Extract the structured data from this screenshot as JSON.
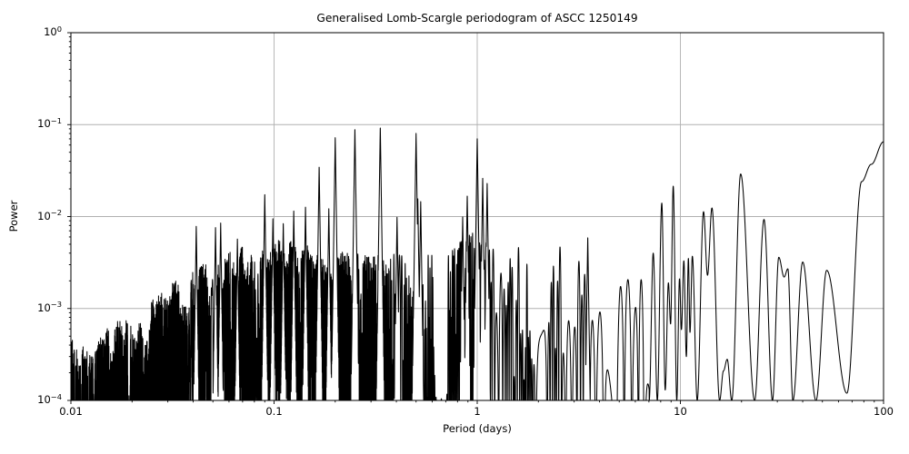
{
  "colors": {
    "line": "#000000",
    "grid": "#b0b0b0",
    "background": "#ffffff",
    "text": "#000000"
  },
  "chart_data": {
    "type": "line",
    "title": "Generalised Lomb-Scargle periodogram of ASCC 1250149",
    "xlabel": "Period (days)",
    "ylabel": "Power",
    "xscale": "log",
    "yscale": "log",
    "xlim": [
      0.01,
      100
    ],
    "ylim": [
      0.0001,
      1
    ],
    "grid": "major",
    "legend": false,
    "x_ticks": [
      {
        "label": "0.01",
        "value": 0.01
      },
      {
        "label": "0.1",
        "value": 0.1
      },
      {
        "label": "1",
        "value": 1
      },
      {
        "label": "10",
        "value": 10
      },
      {
        "label": "100",
        "value": 100
      }
    ],
    "y_ticks": [
      {
        "base": "10",
        "exp": "0",
        "value": 1
      },
      {
        "base": "10",
        "exp": "−1",
        "value": 0.1
      },
      {
        "base": "10",
        "exp": "−2",
        "value": 0.01
      },
      {
        "base": "10",
        "exp": "−3",
        "value": 0.001
      },
      {
        "base": "10",
        "exp": "−4",
        "value": 0.0001
      }
    ],
    "major_peaks": [
      {
        "period_days": 0.0414,
        "power": 0.0081
      },
      {
        "period_days": 0.0515,
        "power": 0.0077
      },
      {
        "period_days": 0.0546,
        "power": 0.0085
      },
      {
        "period_days": 0.066,
        "power": 0.0058
      },
      {
        "period_days": 0.09,
        "power": 0.018
      },
      {
        "period_days": 0.0987,
        "power": 0.0096
      },
      {
        "period_days": 0.111,
        "power": 0.0087
      },
      {
        "period_days": 0.125,
        "power": 0.0116
      },
      {
        "period_days": 0.1428,
        "power": 0.013
      },
      {
        "period_days": 0.1667,
        "power": 0.036
      },
      {
        "period_days": 0.186,
        "power": 0.0122
      },
      {
        "period_days": 0.2,
        "power": 0.074
      },
      {
        "period_days": 0.25,
        "power": 0.092
      },
      {
        "period_days": 0.3333,
        "power": 0.096
      },
      {
        "period_days": 0.403,
        "power": 0.01
      },
      {
        "period_days": 0.5,
        "power": 0.0805
      },
      {
        "period_days": 0.51,
        "power": 0.0157
      },
      {
        "period_days": 0.527,
        "power": 0.0147
      },
      {
        "period_days": 0.848,
        "power": 0.01
      },
      {
        "period_days": 0.893,
        "power": 0.0175
      },
      {
        "period_days": 1.0,
        "power": 0.0736
      },
      {
        "period_days": 1.064,
        "power": 0.0266
      },
      {
        "period_days": 1.119,
        "power": 0.0238
      },
      {
        "period_days": 3.5,
        "power": 0.0061
      }
    ],
    "long_period_profile": [
      [
        7.02,
        0.0001
      ],
      [
        7.35,
        0.004
      ],
      [
        7.7,
        0.0001
      ],
      [
        8.1,
        0.014
      ],
      [
        8.42,
        0.00013
      ],
      [
        8.73,
        0.0019
      ],
      [
        8.95,
        0.00068
      ],
      [
        9.22,
        0.0214
      ],
      [
        9.6,
        0.0001
      ],
      [
        9.9,
        0.0021
      ],
      [
        10.12,
        0.00059
      ],
      [
        10.4,
        0.0033
      ],
      [
        10.7,
        0.0003
      ],
      [
        10.95,
        0.0035
      ],
      [
        11.15,
        0.00055
      ],
      [
        11.45,
        0.0037
      ],
      [
        12.1,
        0.0001
      ],
      [
        13.0,
        0.0113
      ],
      [
        13.6,
        0.0023
      ],
      [
        14.3,
        0.0124
      ],
      [
        15.6,
        0.0001
      ],
      [
        16.3,
        0.00021
      ],
      [
        17.0,
        0.00028
      ],
      [
        17.9,
        0.0001
      ],
      [
        19.8,
        0.029
      ],
      [
        23.2,
        0.0001
      ],
      [
        25.8,
        0.0093
      ],
      [
        28.4,
        0.0001
      ],
      [
        30.5,
        0.0036
      ],
      [
        32.4,
        0.0022
      ],
      [
        33.8,
        0.0027
      ],
      [
        35.8,
        0.0001
      ],
      [
        40.0,
        0.0032
      ],
      [
        46.5,
        0.0001
      ],
      [
        52.5,
        0.0026
      ],
      [
        66.0,
        0.00012
      ],
      [
        78.0,
        0.024
      ],
      [
        87.0,
        0.037
      ],
      [
        100.0,
        0.065
      ]
    ],
    "noise_envelope_log10": [
      [
        -2.0,
        -3.3
      ],
      [
        -1.8,
        -3.1
      ],
      [
        -1.6,
        -2.85
      ],
      [
        -1.4,
        -2.55
      ],
      [
        -1.2,
        -2.35
      ],
      [
        -1.05,
        -2.2
      ],
      [
        -0.9,
        -2.28
      ],
      [
        -0.7,
        -2.32
      ],
      [
        -0.5,
        -2.38
      ],
      [
        -0.3,
        -2.42
      ],
      [
        -0.15,
        -2.32
      ],
      [
        0.0,
        -2.15
      ],
      [
        0.15,
        -2.35
      ],
      [
        0.35,
        -2.3
      ],
      [
        0.55,
        -2.38
      ],
      [
        0.75,
        -2.52
      ],
      [
        0.85,
        -2.62
      ]
    ],
    "render": {
      "seed": 1250149,
      "samples": 14000,
      "baseline_days": 60,
      "freq_jitter": 0.07,
      "peak_flank_decay": 150,
      "long_start_period": 7.02,
      "spread_lobe": [
        [
          -2,
          1.1
        ],
        [
          -0.6,
          1.1
        ],
        [
          -0.3,
          1.7
        ],
        [
          0.25,
          1.7
        ],
        [
          0.5,
          1.25
        ],
        [
          0.85,
          1.25
        ]
      ],
      "spread_block": [
        [
          -2,
          0.5
        ],
        [
          -0.9,
          0.5
        ],
        [
          -0.3,
          0.12
        ],
        [
          0.0,
          0.0
        ],
        [
          0.85,
          0.0
        ]
      ]
    }
  }
}
